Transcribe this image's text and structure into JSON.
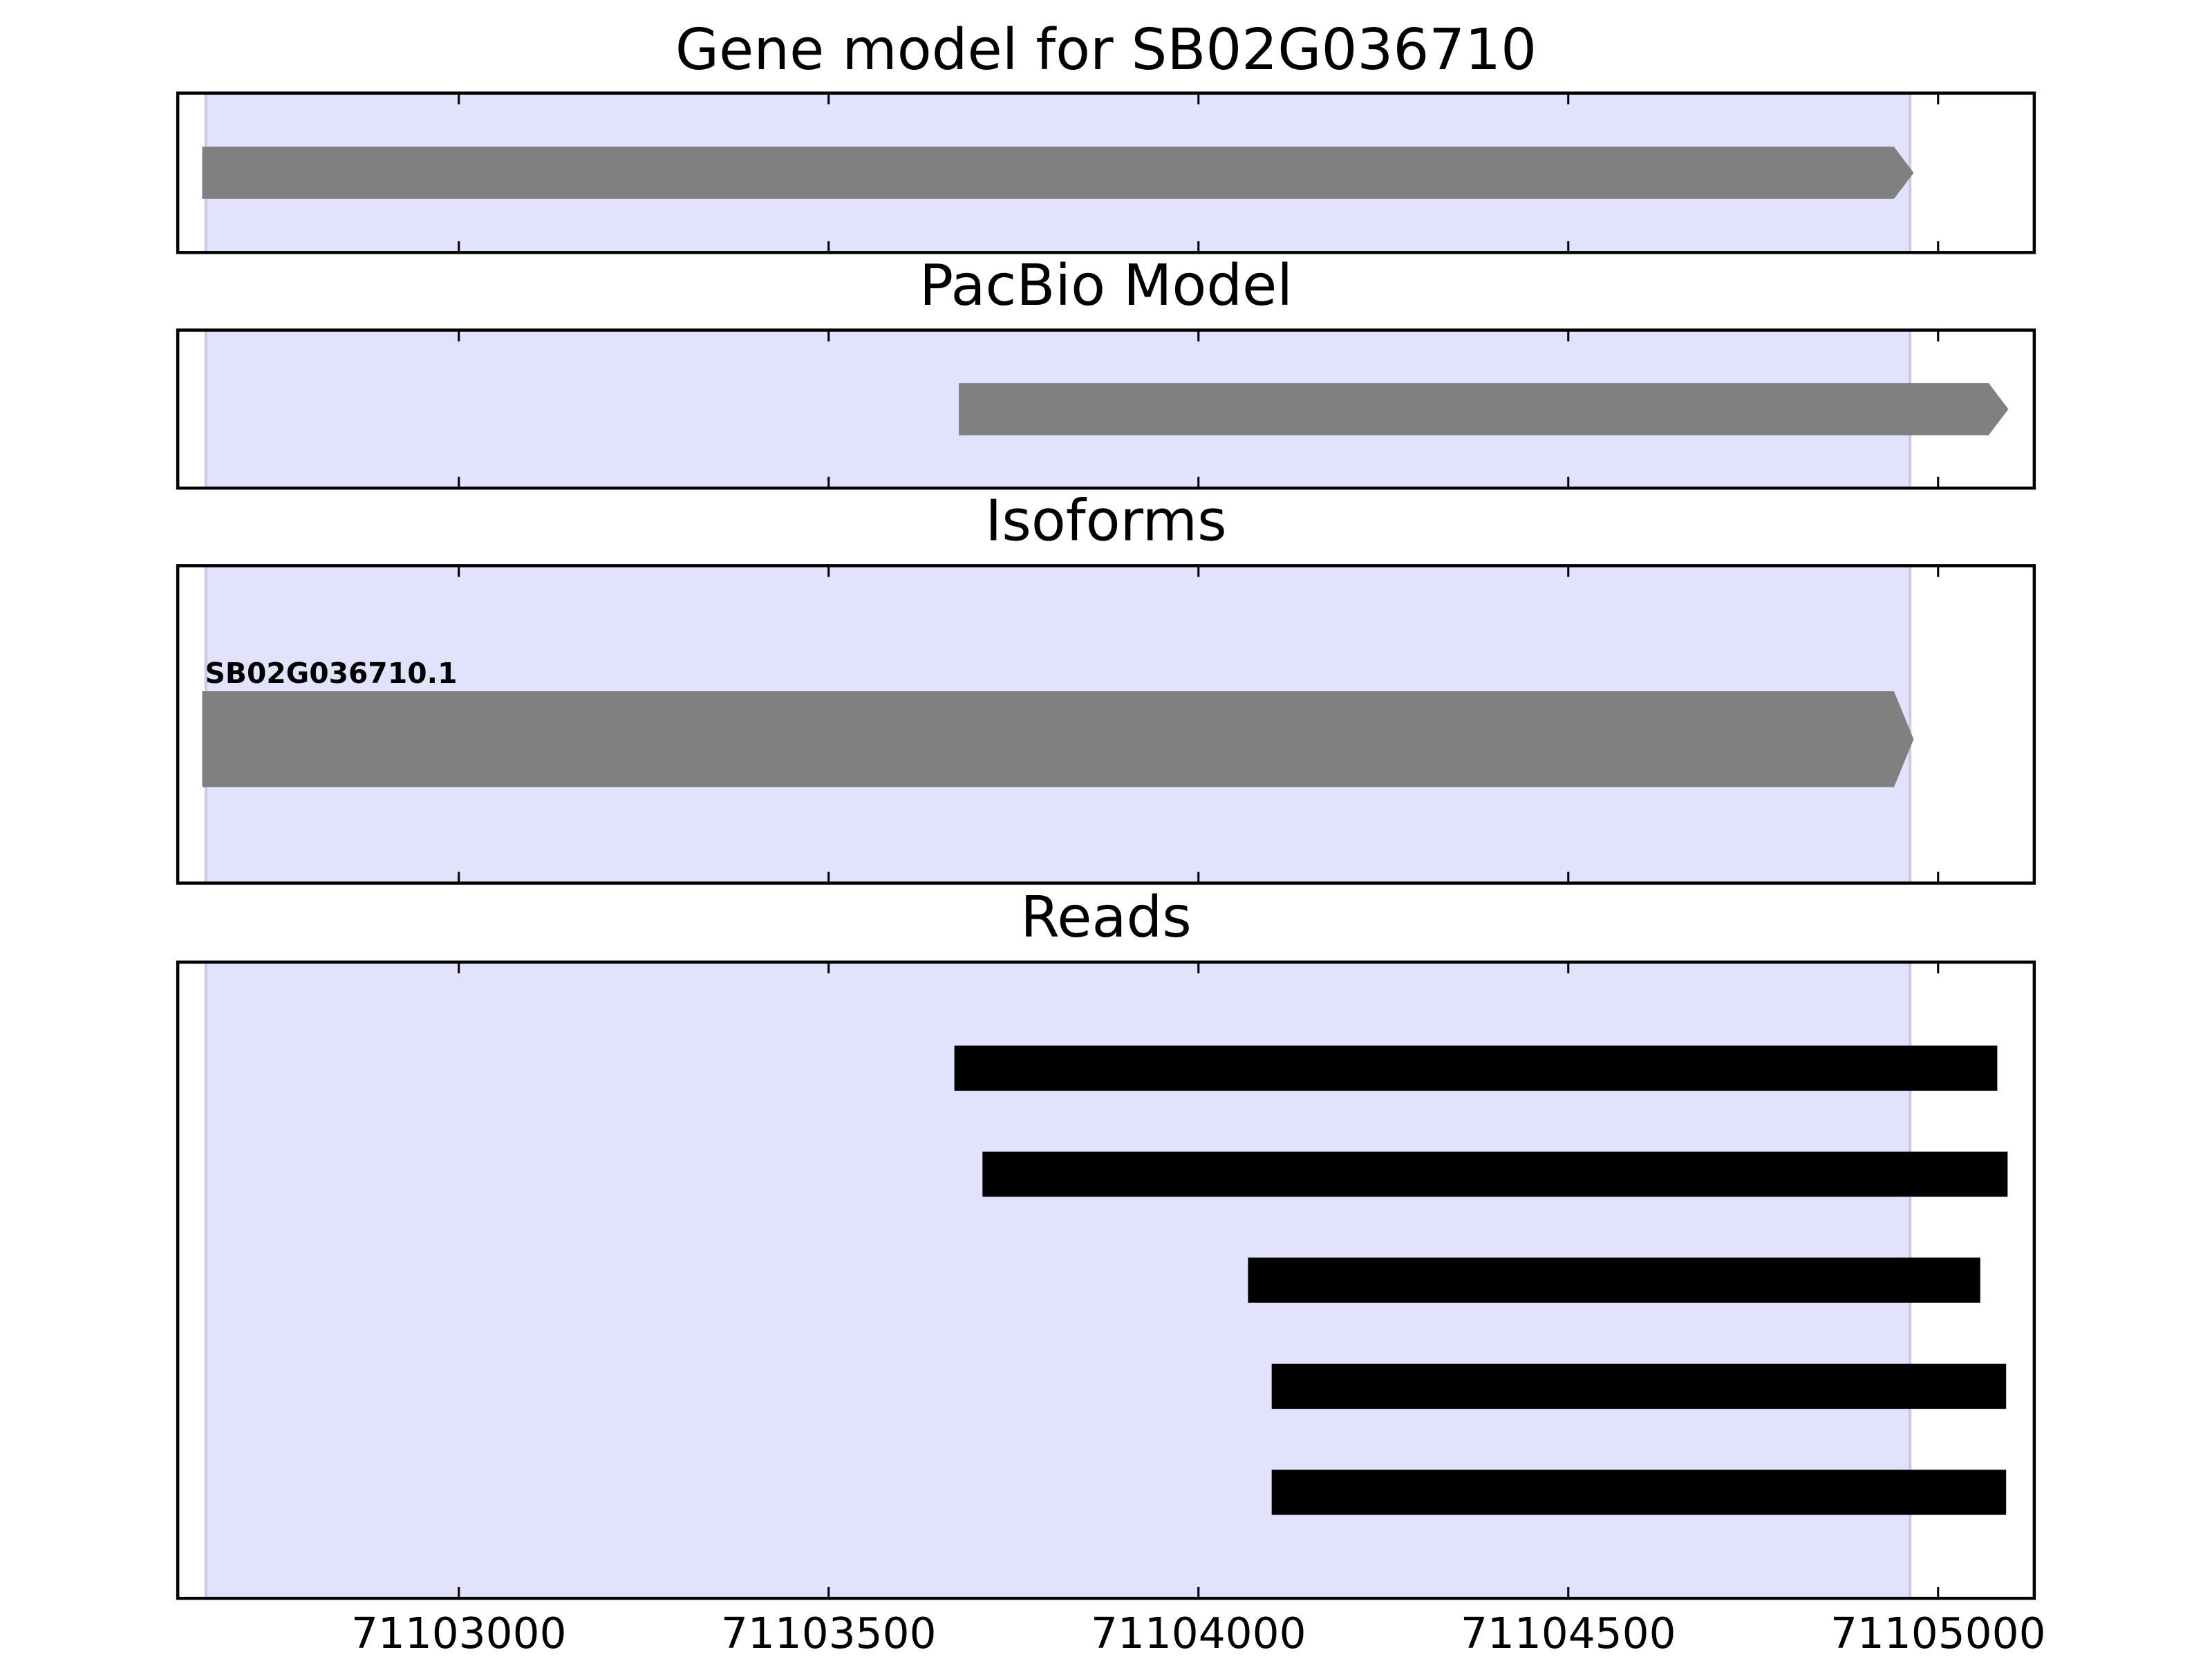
{
  "chart_data": [
    {
      "type": "arrow",
      "title": "Gene model for SB02G036710",
      "color": "#808080",
      "features": [
        {
          "start": 71102653,
          "end": 71104967
        }
      ],
      "highlight": [
        71102658,
        71104962
      ],
      "highlight_color": "#e2e2fc",
      "xlim": [
        71102620,
        71105130
      ],
      "xticks": [
        71103000,
        71103500,
        71104000,
        71104500,
        71105000
      ]
    },
    {
      "type": "arrow",
      "title": "PacBio Model",
      "color": "#808080",
      "features": [
        {
          "start": 71103676,
          "end": 71105095
        }
      ],
      "highlight": [
        71102658,
        71104962
      ],
      "highlight_color": "#e2e2fc",
      "xlim": [
        71102620,
        71105130
      ],
      "xticks": [
        71103000,
        71103500,
        71104000,
        71104500,
        71105000
      ]
    },
    {
      "type": "arrow",
      "title": "Isoforms",
      "color": "#808080",
      "features": [
        {
          "start": 71102653,
          "end": 71104967,
          "label": "SB02G036710.1"
        }
      ],
      "highlight": [
        71102658,
        71104962
      ],
      "highlight_color": "#e2e2fc",
      "xlim": [
        71102620,
        71105130
      ],
      "xticks": [
        71103000,
        71103500,
        71104000,
        71104500,
        71105000
      ]
    },
    {
      "type": "bar",
      "title": "Reads",
      "color": "#000000",
      "features": [
        {
          "start": 71103670,
          "end": 71105080
        },
        {
          "start": 71103708,
          "end": 71105094
        },
        {
          "start": 71104067,
          "end": 71105057
        },
        {
          "start": 71104099,
          "end": 71105092
        },
        {
          "start": 71104099,
          "end": 71105092
        }
      ],
      "highlight": [
        71102658,
        71104962
      ],
      "highlight_color": "#e2e2fc",
      "xlim": [
        71102620,
        71105130
      ],
      "xticks": [
        71103000,
        71103500,
        71104000,
        71104500,
        71105000
      ]
    }
  ]
}
